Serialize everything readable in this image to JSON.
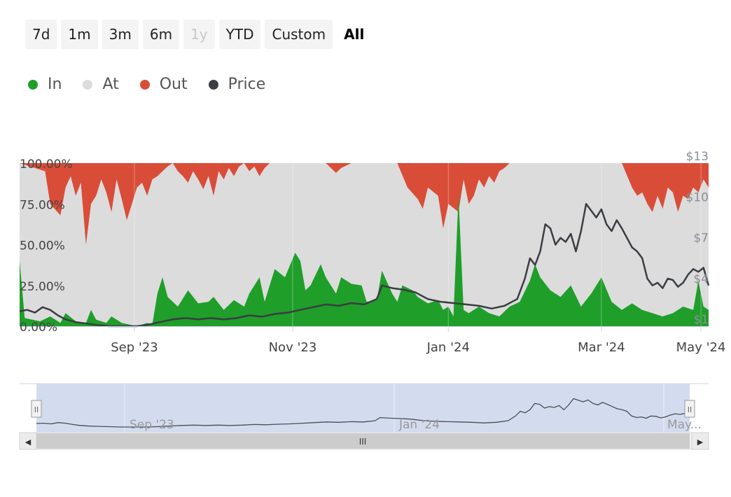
{
  "range_selector": {
    "buttons": [
      {
        "label": "7d",
        "state": "normal"
      },
      {
        "label": "1m",
        "state": "normal"
      },
      {
        "label": "3m",
        "state": "normal"
      },
      {
        "label": "6m",
        "state": "normal"
      },
      {
        "label": "1y",
        "state": "disabled"
      },
      {
        "label": "YTD",
        "state": "normal"
      },
      {
        "label": "Custom",
        "state": "normal"
      },
      {
        "label": "All",
        "state": "active"
      }
    ]
  },
  "legend": [
    {
      "label": "In",
      "color": "#1f9e2a"
    },
    {
      "label": "At",
      "color": "#dcdcdc"
    },
    {
      "label": "Out",
      "color": "#d94d38"
    },
    {
      "label": "Price",
      "color": "#3a3d42"
    }
  ],
  "chart_data": {
    "type": "area",
    "stacking": "percent",
    "x_ticks": [
      "Sep '23",
      "Nov '23",
      "Jan '24",
      "Mar '24",
      "May '24"
    ],
    "y_left_ticks": [
      "0.00%",
      "25.00%",
      "50.00%",
      "75.00%",
      "100.00%"
    ],
    "y_right_ticks": [
      "$1",
      "$4",
      "$7",
      "$10",
      "$13"
    ],
    "y_left_range": [
      0,
      100
    ],
    "y_right_range": [
      1,
      13
    ],
    "x_range_days": [
      0,
      270
    ],
    "colors": {
      "in": "#1f9e2a",
      "at": "#dcdcdc",
      "out": "#d94d38",
      "price": "#3a3d42"
    },
    "series_in": [
      [
        0,
        40
      ],
      [
        2,
        5
      ],
      [
        8,
        3
      ],
      [
        12,
        6
      ],
      [
        16,
        2
      ],
      [
        18,
        8
      ],
      [
        22,
        3
      ],
      [
        26,
        2
      ],
      [
        28,
        10
      ],
      [
        30,
        4
      ],
      [
        34,
        2
      ],
      [
        36,
        6
      ],
      [
        40,
        2
      ],
      [
        46,
        0
      ],
      [
        50,
        2
      ],
      [
        52,
        1
      ],
      [
        54,
        20
      ],
      [
        56,
        30
      ],
      [
        58,
        18
      ],
      [
        62,
        12
      ],
      [
        66,
        22
      ],
      [
        70,
        14
      ],
      [
        74,
        15
      ],
      [
        76,
        18
      ],
      [
        80,
        10
      ],
      [
        84,
        16
      ],
      [
        88,
        12
      ],
      [
        90,
        20
      ],
      [
        94,
        30
      ],
      [
        96,
        15
      ],
      [
        100,
        35
      ],
      [
        104,
        30
      ],
      [
        108,
        45
      ],
      [
        110,
        40
      ],
      [
        112,
        22
      ],
      [
        114,
        25
      ],
      [
        118,
        38
      ],
      [
        120,
        30
      ],
      [
        124,
        20
      ],
      [
        126,
        30
      ],
      [
        130,
        26
      ],
      [
        134,
        25
      ],
      [
        136,
        15
      ],
      [
        140,
        16
      ],
      [
        142,
        34
      ],
      [
        146,
        20
      ],
      [
        148,
        15
      ],
      [
        150,
        25
      ],
      [
        154,
        22
      ],
      [
        156,
        18
      ],
      [
        160,
        14
      ],
      [
        164,
        16
      ],
      [
        166,
        10
      ],
      [
        168,
        12
      ],
      [
        170,
        6
      ],
      [
        172,
        80
      ],
      [
        174,
        10
      ],
      [
        176,
        8
      ],
      [
        180,
        12
      ],
      [
        184,
        8
      ],
      [
        188,
        6
      ],
      [
        192,
        12
      ],
      [
        196,
        15
      ],
      [
        200,
        28
      ],
      [
        202,
        38
      ],
      [
        204,
        30
      ],
      [
        208,
        22
      ],
      [
        212,
        18
      ],
      [
        216,
        25
      ],
      [
        220,
        12
      ],
      [
        224,
        20
      ],
      [
        228,
        30
      ],
      [
        232,
        15
      ],
      [
        236,
        10
      ],
      [
        240,
        14
      ],
      [
        244,
        10
      ],
      [
        248,
        8
      ],
      [
        252,
        6
      ],
      [
        256,
        8
      ],
      [
        260,
        12
      ],
      [
        264,
        10
      ],
      [
        266,
        28
      ],
      [
        268,
        12
      ],
      [
        270,
        10
      ]
    ],
    "series_out": [
      [
        0,
        0
      ],
      [
        10,
        5
      ],
      [
        12,
        25
      ],
      [
        16,
        32
      ],
      [
        18,
        15
      ],
      [
        20,
        8
      ],
      [
        22,
        20
      ],
      [
        24,
        12
      ],
      [
        26,
        50
      ],
      [
        28,
        25
      ],
      [
        30,
        20
      ],
      [
        32,
        10
      ],
      [
        34,
        18
      ],
      [
        36,
        30
      ],
      [
        38,
        10
      ],
      [
        40,
        22
      ],
      [
        42,
        35
      ],
      [
        44,
        25
      ],
      [
        46,
        15
      ],
      [
        48,
        12
      ],
      [
        50,
        20
      ],
      [
        52,
        10
      ],
      [
        54,
        8
      ],
      [
        56,
        5
      ],
      [
        58,
        2
      ],
      [
        60,
        0
      ],
      [
        62,
        5
      ],
      [
        64,
        8
      ],
      [
        66,
        12
      ],
      [
        68,
        5
      ],
      [
        70,
        10
      ],
      [
        72,
        16
      ],
      [
        74,
        8
      ],
      [
        76,
        20
      ],
      [
        78,
        5
      ],
      [
        80,
        10
      ],
      [
        82,
        3
      ],
      [
        84,
        8
      ],
      [
        86,
        2
      ],
      [
        88,
        0
      ],
      [
        90,
        5
      ],
      [
        92,
        2
      ],
      [
        94,
        8
      ],
      [
        96,
        3
      ],
      [
        98,
        0
      ],
      [
        120,
        0
      ],
      [
        124,
        6
      ],
      [
        126,
        3
      ],
      [
        130,
        0
      ],
      [
        148,
        0
      ],
      [
        152,
        15
      ],
      [
        156,
        22
      ],
      [
        158,
        28
      ],
      [
        160,
        15
      ],
      [
        164,
        20
      ],
      [
        166,
        40
      ],
      [
        168,
        25
      ],
      [
        172,
        30
      ],
      [
        174,
        10
      ],
      [
        176,
        25
      ],
      [
        178,
        20
      ],
      [
        180,
        10
      ],
      [
        182,
        15
      ],
      [
        184,
        8
      ],
      [
        186,
        12
      ],
      [
        188,
        5
      ],
      [
        190,
        3
      ],
      [
        192,
        0
      ],
      [
        236,
        0
      ],
      [
        240,
        15
      ],
      [
        242,
        20
      ],
      [
        244,
        18
      ],
      [
        246,
        25
      ],
      [
        248,
        30
      ],
      [
        250,
        20
      ],
      [
        252,
        28
      ],
      [
        254,
        15
      ],
      [
        256,
        18
      ],
      [
        258,
        30
      ],
      [
        260,
        20
      ],
      [
        262,
        22
      ],
      [
        264,
        15
      ],
      [
        266,
        18
      ],
      [
        268,
        10
      ],
      [
        270,
        15
      ]
    ],
    "series_price": [
      [
        0,
        2.1
      ],
      [
        3,
        2.2
      ],
      [
        6,
        2.0
      ],
      [
        9,
        2.4
      ],
      [
        12,
        2.2
      ],
      [
        15,
        1.8
      ],
      [
        18,
        1.5
      ],
      [
        22,
        1.3
      ],
      [
        26,
        1.2
      ],
      [
        30,
        1.1
      ],
      [
        35,
        1.0
      ],
      [
        40,
        1.0
      ],
      [
        46,
        1.0
      ],
      [
        50,
        1.1
      ],
      [
        55,
        1.3
      ],
      [
        60,
        1.5
      ],
      [
        65,
        1.6
      ],
      [
        70,
        1.5
      ],
      [
        75,
        1.6
      ],
      [
        80,
        1.5
      ],
      [
        85,
        1.6
      ],
      [
        90,
        1.8
      ],
      [
        95,
        1.7
      ],
      [
        100,
        1.9
      ],
      [
        105,
        2.0
      ],
      [
        110,
        2.2
      ],
      [
        115,
        2.4
      ],
      [
        120,
        2.6
      ],
      [
        125,
        2.5
      ],
      [
        130,
        2.7
      ],
      [
        135,
        2.6
      ],
      [
        140,
        3.0
      ],
      [
        142,
        4.0
      ],
      [
        146,
        3.8
      ],
      [
        150,
        3.7
      ],
      [
        155,
        3.5
      ],
      [
        160,
        3.0
      ],
      [
        165,
        2.8
      ],
      [
        170,
        2.7
      ],
      [
        175,
        2.6
      ],
      [
        180,
        2.5
      ],
      [
        185,
        2.3
      ],
      [
        190,
        2.5
      ],
      [
        195,
        3.0
      ],
      [
        198,
        4.5
      ],
      [
        200,
        6.0
      ],
      [
        202,
        5.5
      ],
      [
        204,
        6.5
      ],
      [
        206,
        8.5
      ],
      [
        208,
        8.2
      ],
      [
        210,
        7.0
      ],
      [
        212,
        7.5
      ],
      [
        214,
        7.2
      ],
      [
        216,
        7.8
      ],
      [
        218,
        6.5
      ],
      [
        220,
        8.0
      ],
      [
        222,
        10.0
      ],
      [
        224,
        9.5
      ],
      [
        226,
        9.0
      ],
      [
        228,
        9.6
      ],
      [
        230,
        8.5
      ],
      [
        232,
        8.0
      ],
      [
        234,
        8.8
      ],
      [
        236,
        8.2
      ],
      [
        238,
        7.5
      ],
      [
        240,
        6.8
      ],
      [
        242,
        6.5
      ],
      [
        244,
        6.0
      ],
      [
        246,
        4.5
      ],
      [
        248,
        4.0
      ],
      [
        250,
        4.2
      ],
      [
        252,
        3.8
      ],
      [
        254,
        4.5
      ],
      [
        256,
        4.4
      ],
      [
        258,
        3.9
      ],
      [
        260,
        4.2
      ],
      [
        262,
        4.8
      ],
      [
        264,
        5.2
      ],
      [
        266,
        5.0
      ],
      [
        268,
        5.3
      ],
      [
        270,
        4.0
      ]
    ]
  },
  "navigator": {
    "x_labels": [
      "Sep '23",
      "Jan '24",
      "May..."
    ],
    "scrollbar_grip": "III",
    "left_arrow": "◀",
    "right_arrow": "▶",
    "handle_grip": "II"
  }
}
